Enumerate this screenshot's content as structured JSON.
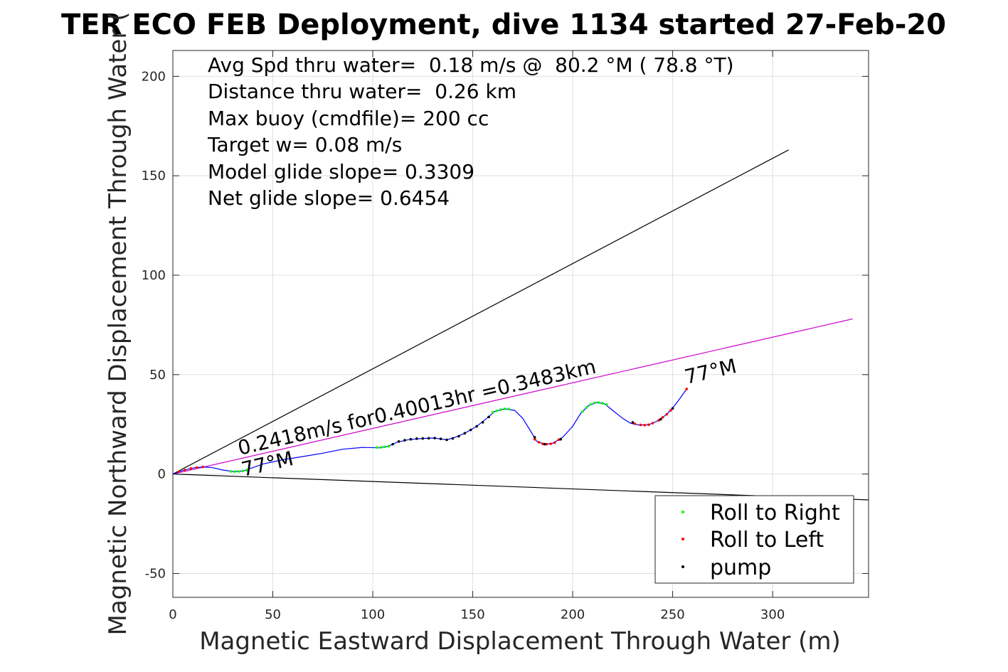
{
  "chart_data": {
    "type": "scatter",
    "title": "TER ECO FEB Deployment, dive 1134 started 27-Feb-20",
    "xlabel": "Magnetic Eastward Displacement Through Water (m)",
    "ylabel": "Magnetic Northward Displacement Through Water (",
    "xlim": [
      0,
      348
    ],
    "ylim": [
      -62,
      213
    ],
    "xticks": [
      0,
      50,
      100,
      150,
      200,
      250,
      300
    ],
    "yticks": [
      -50,
      0,
      50,
      100,
      150,
      200
    ],
    "ytick_labels": [
      "-50",
      "0",
      "50",
      "100",
      "150",
      "200"
    ],
    "grid": true,
    "info_lines": [
      "Avg Spd thru water=  0.18 m/s @  80.2 °M ( 78.8 °T)",
      "Distance thru water=  0.26 km",
      "Max buoy (cmdfile)= 200 cc",
      "Target w= 0.08 m/s",
      "Model glide slope= 0.3309",
      "Net glide slope= 0.6454"
    ],
    "annotations": {
      "speed_label": "0.2418m/s for0.40013hr =0.3483km",
      "heading_start": "77°M",
      "heading_end": "77°M"
    },
    "track": [
      [
        0,
        0
      ],
      [
        5,
        1.8
      ],
      [
        10,
        3
      ],
      [
        15,
        3.6
      ],
      [
        20,
        3.2
      ],
      [
        25,
        2
      ],
      [
        30,
        1.3
      ],
      [
        35,
        1.5
      ],
      [
        40,
        3.2
      ],
      [
        45,
        5
      ],
      [
        55,
        7.2
      ],
      [
        65,
        8.8
      ],
      [
        75,
        10.5
      ],
      [
        85,
        12.5
      ],
      [
        95,
        13.4
      ],
      [
        103,
        13.2
      ],
      [
        108,
        14
      ],
      [
        112,
        16
      ],
      [
        118,
        17.3
      ],
      [
        125,
        17.9
      ],
      [
        130,
        18.1
      ],
      [
        134,
        17.7
      ],
      [
        137,
        17.2
      ],
      [
        141,
        18.4
      ],
      [
        146,
        20.5
      ],
      [
        152,
        24
      ],
      [
        157,
        28
      ],
      [
        161,
        31.5
      ],
      [
        166,
        32.8
      ],
      [
        171,
        32
      ],
      [
        175,
        28
      ],
      [
        179,
        21.5
      ],
      [
        182,
        16.5
      ],
      [
        186,
        15
      ],
      [
        190,
        15.5
      ],
      [
        195,
        18.5
      ],
      [
        200,
        24
      ],
      [
        204,
        30.5
      ],
      [
        208,
        34.5
      ],
      [
        212,
        36
      ],
      [
        216,
        35.3
      ],
      [
        220,
        32
      ],
      [
        225,
        28
      ],
      [
        229,
        25.5
      ],
      [
        233,
        24.7
      ],
      [
        238,
        24.8
      ],
      [
        242,
        26.5
      ],
      [
        247,
        30
      ],
      [
        251,
        34.5
      ],
      [
        254,
        38.5
      ],
      [
        257,
        42.8
      ]
    ],
    "reference_lines": [
      {
        "name": "heading-bound-upper",
        "color": "#000000",
        "points": [
          [
            0,
            0
          ],
          [
            308,
            163
          ]
        ]
      },
      {
        "name": "heading-bound-lower",
        "color": "#000000",
        "points": [
          [
            0,
            0
          ],
          [
            348,
            -13
          ]
        ]
      },
      {
        "name": "net-heading",
        "color": "#cc00cc",
        "points": [
          [
            0,
            0
          ],
          [
            340,
            78
          ]
        ]
      }
    ],
    "markers": {
      "roll_right": [
        [
          29,
          1.3
        ],
        [
          31,
          1.2
        ],
        [
          33,
          1.3
        ],
        [
          35,
          1.5
        ],
        [
          37,
          2
        ],
        [
          102,
          13.3
        ],
        [
          104,
          13.4
        ],
        [
          106,
          13.7
        ],
        [
          108,
          14
        ],
        [
          160,
          31
        ],
        [
          162,
          31.8
        ],
        [
          164,
          32.4
        ],
        [
          166,
          32.8
        ],
        [
          168,
          32.7
        ],
        [
          205,
          31.5
        ],
        [
          207,
          33.5
        ],
        [
          209,
          35
        ],
        [
          211,
          35.8
        ],
        [
          213,
          36
        ],
        [
          215,
          35.6
        ],
        [
          217,
          35
        ]
      ],
      "roll_left": [
        [
          3,
          1.2
        ],
        [
          6,
          2
        ],
        [
          9,
          2.8
        ],
        [
          12,
          3.3
        ],
        [
          15,
          3.6
        ],
        [
          181,
          17.5
        ],
        [
          183,
          16
        ],
        [
          185,
          15.2
        ],
        [
          187,
          15
        ],
        [
          189,
          15.2
        ],
        [
          191,
          15.8
        ],
        [
          193,
          17.3
        ],
        [
          231,
          25.3
        ],
        [
          234,
          24.7
        ],
        [
          236,
          24.6
        ],
        [
          238,
          24.8
        ],
        [
          240,
          25.6
        ],
        [
          243,
          27
        ],
        [
          245,
          28.5
        ],
        [
          247,
          30
        ],
        [
          249,
          32
        ],
        [
          257,
          42.8
        ]
      ],
      "pump": [
        [
          110,
          15
        ],
        [
          113,
          16.4
        ],
        [
          116,
          17
        ],
        [
          119,
          17.5
        ],
        [
          122,
          17.8
        ],
        [
          125,
          17.9
        ],
        [
          128,
          18
        ],
        [
          131,
          18.1
        ],
        [
          134,
          17.7
        ],
        [
          137,
          17.2
        ],
        [
          140,
          17.9
        ],
        [
          143,
          19
        ],
        [
          146,
          20.5
        ],
        [
          149,
          22.2
        ],
        [
          152,
          24
        ],
        [
          155,
          26
        ],
        [
          158,
          28.7
        ],
        [
          181,
          18.5
        ],
        [
          186,
          15
        ],
        [
          194,
          17.5
        ],
        [
          230,
          26
        ],
        [
          244,
          27.5
        ],
        [
          250,
          33
        ]
      ]
    },
    "legend": {
      "placement": "bottom-right",
      "entries": [
        {
          "label": "Roll to Right",
          "color": "#00ff00"
        },
        {
          "label": "Roll to Left",
          "color": "#ff0000"
        },
        {
          "label": "pump",
          "color": "#000000"
        }
      ]
    },
    "colors": {
      "track": "#0000ff",
      "axis": "#262626",
      "grid": "#dfdfdf"
    }
  }
}
